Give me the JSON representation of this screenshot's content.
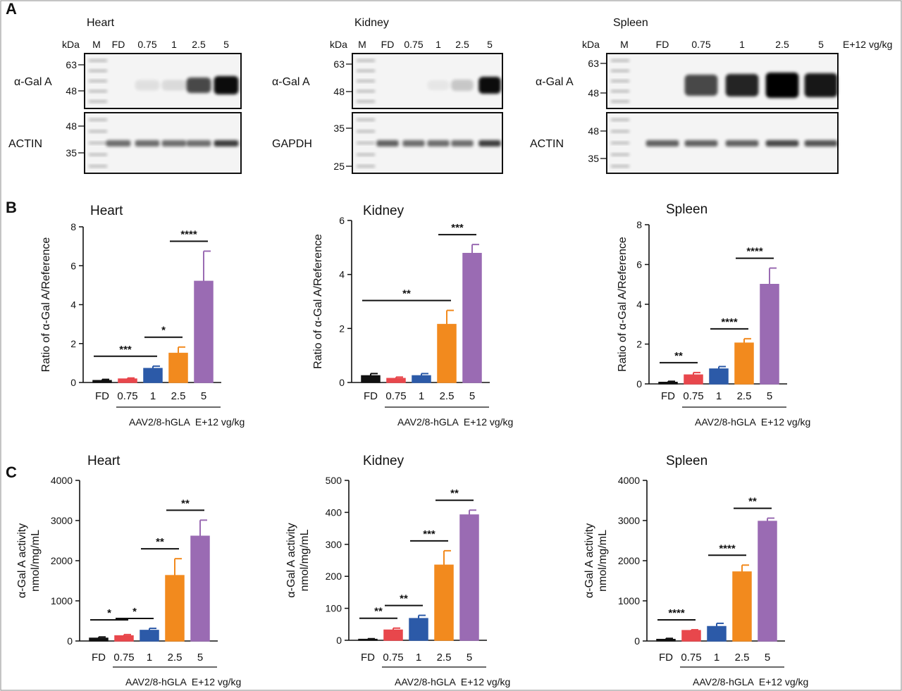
{
  "figure": {
    "panel_labels": [
      "A",
      "B",
      "C"
    ],
    "blots": [
      {
        "tissue": "Heart",
        "kda_label": "kDa",
        "lanes": [
          "M",
          "FD",
          "0.75",
          "1",
          "2.5",
          "5"
        ],
        "unit_label": "",
        "top": {
          "protein": "α-Gal A",
          "markers": [
            "63",
            "48"
          ]
        },
        "bottom": {
          "protein": "ACTIN",
          "markers": [
            "48",
            "35"
          ]
        }
      },
      {
        "tissue": "Kidney",
        "kda_label": "kDa",
        "lanes": [
          "M",
          "FD",
          "0.75",
          "1",
          "2.5",
          "5"
        ],
        "unit_label": "",
        "top": {
          "protein": "α-Gal A",
          "markers": [
            "63",
            "48"
          ]
        },
        "bottom": {
          "protein": "GAPDH",
          "markers": [
            "35",
            "25"
          ]
        }
      },
      {
        "tissue": "Spleen",
        "kda_label": "kDa",
        "lanes": [
          "M",
          "FD",
          "0.75",
          "1",
          "2.5",
          "5"
        ],
        "unit_label": "E+12 vg/kg",
        "top": {
          "protein": "α-Gal A",
          "markers": [
            "63",
            "48"
          ]
        },
        "bottom": {
          "protein": "ACTIN",
          "markers": [
            "48",
            "35"
          ]
        }
      }
    ]
  },
  "chart_data": [
    {
      "type": "bar",
      "panel": "B",
      "title": "Heart",
      "ylabel": "Ratio of α-Gal A/Reference",
      "categories": [
        "FD",
        "0.75",
        "1",
        "2.5",
        "5"
      ],
      "values": [
        0.1,
        0.18,
        0.72,
        1.5,
        5.2
      ],
      "errors": [
        0.06,
        0.05,
        0.12,
        0.32,
        1.55
      ],
      "ylim": [
        0,
        8
      ],
      "yticks": [
        "0",
        "2",
        "4",
        "6",
        "8"
      ],
      "footnote": "AAV2/8-hGLA  E+12 vg/kg",
      "significance": [
        {
          "from": 0,
          "to": 2,
          "label": "***"
        },
        {
          "from": 2,
          "to": 3,
          "label": "*"
        },
        {
          "from": 3,
          "to": 4,
          "label": "****"
        }
      ]
    },
    {
      "type": "bar",
      "panel": "B",
      "title": "Kidney",
      "ylabel": "Ratio of α-Gal A/Reference",
      "categories": [
        "FD",
        "0.75",
        "1",
        "2.5",
        "5"
      ],
      "values": [
        0.25,
        0.15,
        0.25,
        2.15,
        4.78
      ],
      "errors": [
        0.08,
        0.05,
        0.08,
        0.52,
        0.33
      ],
      "ylim": [
        0,
        6
      ],
      "yticks": [
        "0",
        "2",
        "4",
        "6"
      ],
      "footnote": "AAV2/8-hGLA  E+12 vg/kg",
      "significance": [
        {
          "from": 0,
          "to": 3,
          "label": "**"
        },
        {
          "from": 3,
          "to": 4,
          "label": "***"
        }
      ]
    },
    {
      "type": "bar",
      "panel": "B",
      "title": "Spleen",
      "ylabel": "Ratio of α-Gal A/Reference",
      "categories": [
        "FD",
        "0.75",
        "1",
        "2.5",
        "5"
      ],
      "values": [
        0.08,
        0.45,
        0.75,
        2.05,
        5.0
      ],
      "errors": [
        0.05,
        0.12,
        0.12,
        0.22,
        0.82
      ],
      "ylim": [
        0,
        8
      ],
      "yticks": [
        "0",
        "2",
        "4",
        "6",
        "8"
      ],
      "footnote": "AAV2/8-hGLA  E+12 vg/kg",
      "significance": [
        {
          "from": 0,
          "to": 1,
          "label": "**"
        },
        {
          "from": 2,
          "to": 3,
          "label": "****"
        },
        {
          "from": 3,
          "to": 4,
          "label": "****"
        }
      ]
    },
    {
      "type": "bar",
      "panel": "C",
      "title": "Heart",
      "ylabel": [
        "α-Gal A activity",
        "nmol/mg/mL"
      ],
      "categories": [
        "FD",
        "0.75",
        "1",
        "2.5",
        "5"
      ],
      "values": [
        70,
        130,
        265,
        1630,
        2610
      ],
      "errors": [
        30,
        30,
        50,
        420,
        400
      ],
      "ylim": [
        0,
        4000
      ],
      "yticks": [
        "0",
        "1000",
        "2000",
        "3000",
        "4000"
      ],
      "footnote": "AAV2/8-hGLA  E+12 vg/kg",
      "significance": [
        {
          "from": 0,
          "to": 1,
          "label": "*"
        },
        {
          "from": 1,
          "to": 2,
          "label": "*"
        },
        {
          "from": 2,
          "to": 3,
          "label": "**"
        },
        {
          "from": 3,
          "to": 4,
          "label": "**"
        }
      ]
    },
    {
      "type": "bar",
      "panel": "C",
      "title": "Kidney",
      "ylabel": [
        "α-Gal A activity",
        "nmol/mg/mL"
      ],
      "categories": [
        "FD",
        "0.75",
        "1",
        "2.5",
        "5"
      ],
      "values": [
        3,
        32,
        68,
        235,
        392
      ],
      "errors": [
        2,
        6,
        10,
        45,
        15
      ],
      "ylim": [
        0,
        500
      ],
      "yticks": [
        "0",
        "100",
        "200",
        "300",
        "400",
        "500"
      ],
      "footnote": "AAV2/8-hGLA  E+12 vg/kg",
      "significance": [
        {
          "from": 0,
          "to": 1,
          "label": "**"
        },
        {
          "from": 1,
          "to": 2,
          "label": "**"
        },
        {
          "from": 2,
          "to": 3,
          "label": "***"
        },
        {
          "from": 3,
          "to": 4,
          "label": "**"
        }
      ]
    },
    {
      "type": "bar",
      "panel": "C",
      "title": "Spleen",
      "ylabel": [
        "α-Gal A activity",
        "nmol/mg/mL"
      ],
      "categories": [
        "FD",
        "0.75",
        "1",
        "2.5",
        "5"
      ],
      "values": [
        40,
        260,
        360,
        1720,
        2980
      ],
      "errors": [
        25,
        20,
        80,
        170,
        80
      ],
      "ylim": [
        0,
        4000
      ],
      "yticks": [
        "0",
        "1000",
        "2000",
        "3000",
        "4000"
      ],
      "footnote": "AAV2/8-hGLA  E+12 vg/kg",
      "significance": [
        {
          "from": 0,
          "to": 1,
          "label": "****"
        },
        {
          "from": 2,
          "to": 3,
          "label": "****"
        },
        {
          "from": 3,
          "to": 4,
          "label": "**"
        }
      ]
    }
  ],
  "colors": {
    "FD": "#111111",
    "0.75": "#e8474c",
    "1": "#2c5aa8",
    "2.5": "#f28a1e",
    "5": "#9a6bb3"
  }
}
